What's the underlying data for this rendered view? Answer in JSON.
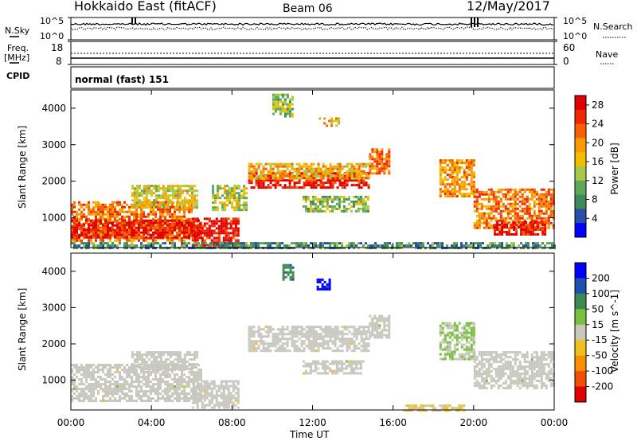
{
  "header": {
    "radar_name": "Hokkaido East (fitACF)",
    "beam": "Beam 06",
    "date": "12/May/2017"
  },
  "left_labels": {
    "nsky": "N.Sky",
    "freq": "Freq.",
    "freq_unit": "[MHz]",
    "cpid": "CPID",
    "noise_top": "10^5",
    "noise_bottom": "10^0",
    "freq_top": "18",
    "freq_bottom": "8"
  },
  "right_labels": {
    "nsearch": "N.Search",
    "nave": "Nave",
    "noise_top": "10^5",
    "noise_bottom": "10^0",
    "nave_top": "60",
    "nave_bottom": "0"
  },
  "cpid_text": "normal (fast) 151",
  "colors": {
    "power_scale": [
      "#0000ff",
      "#2a4fa8",
      "#3d8a5a",
      "#5fa85a",
      "#a8c84a",
      "#f0c000",
      "#f89a00",
      "#f86000",
      "#f02800",
      "#e00000"
    ],
    "velocity_scale": [
      "#0000ff",
      "#2050b0",
      "#3c8a50",
      "#78c040",
      "#c8c8b8",
      "#f0c020",
      "#f89000",
      "#f05000",
      "#e00000"
    ],
    "velocity_ground": "#c8c8c0"
  },
  "chart_data": [
    {
      "type": "heatmap",
      "name": "power",
      "xlabel": "",
      "ylabel": "Slant Range [km]",
      "x_ticks": [
        "00:00",
        "04:00",
        "08:00",
        "12:00",
        "16:00",
        "20:00",
        "00:00"
      ],
      "xlim": [
        0,
        24
      ],
      "ylim": [
        180,
        4500
      ],
      "y_ticks": [
        1000,
        2000,
        3000,
        4000
      ],
      "colorbar": {
        "label": "Power [dB]",
        "ticks": [
          4,
          8,
          12,
          16,
          20,
          24,
          28
        ],
        "range": [
          0,
          30
        ]
      },
      "regions": [
        {
          "t0": 0.0,
          "t1": 6.0,
          "r0": 400,
          "r1": 1450,
          "v": 22
        },
        {
          "t0": 0.0,
          "t1": 6.5,
          "r0": 450,
          "r1": 950,
          "v": 27
        },
        {
          "t0": 3.0,
          "t1": 6.3,
          "r0": 1300,
          "r1": 1900,
          "v": 16
        },
        {
          "t0": 6.0,
          "t1": 8.3,
          "r0": 200,
          "r1": 1000,
          "v": 28
        },
        {
          "t0": 7.0,
          "t1": 8.7,
          "r0": 1200,
          "r1": 1900,
          "v": 14
        },
        {
          "t0": 8.8,
          "t1": 14.8,
          "r0": 1800,
          "r1": 2250,
          "v": 28
        },
        {
          "t0": 8.8,
          "t1": 14.8,
          "r0": 2100,
          "r1": 2500,
          "v": 18
        },
        {
          "t0": 11.5,
          "t1": 14.8,
          "r0": 1150,
          "r1": 1600,
          "v": 12
        },
        {
          "t0": 14.8,
          "t1": 15.8,
          "r0": 2200,
          "r1": 2900,
          "v": 22
        },
        {
          "t0": 10.0,
          "t1": 11.0,
          "r0": 3800,
          "r1": 4400,
          "v": 12
        },
        {
          "t0": 12.3,
          "t1": 13.3,
          "r0": 3500,
          "r1": 3750,
          "v": 18
        },
        {
          "t0": 18.3,
          "t1": 20.0,
          "r0": 1600,
          "r1": 2600,
          "v": 20
        },
        {
          "t0": 20.0,
          "t1": 24.0,
          "r0": 700,
          "r1": 1800,
          "v": 22
        },
        {
          "t0": 21.0,
          "t1": 23.5,
          "r0": 550,
          "r1": 900,
          "v": 27
        },
        {
          "t0": 0.0,
          "t1": 24.0,
          "r0": 180,
          "r1": 330,
          "v": 8
        }
      ]
    },
    {
      "type": "heatmap",
      "name": "velocity",
      "xlabel": "Time UT",
      "ylabel": "Slant Range [km]",
      "x_ticks": [
        "00:00",
        "04:00",
        "08:00",
        "12:00",
        "16:00",
        "20:00",
        "00:00"
      ],
      "xlim": [
        0,
        24
      ],
      "ylim": [
        180,
        4500
      ],
      "y_ticks": [
        1000,
        2000,
        3000,
        4000
      ],
      "colorbar": {
        "label": "Velocity [m s^-1]",
        "ticks": [
          200,
          100,
          50,
          15,
          -15,
          -50,
          -100,
          -200
        ],
        "range": [
          -250,
          250
        ]
      },
      "regions": [
        {
          "t0": 0.0,
          "t1": 6.5,
          "r0": 400,
          "r1": 1450,
          "v": 0
        },
        {
          "t0": 3.0,
          "t1": 6.3,
          "r0": 1300,
          "r1": 1800,
          "v": 0
        },
        {
          "t0": 6.0,
          "t1": 8.3,
          "r0": 250,
          "r1": 1000,
          "v": 0
        },
        {
          "t0": 8.8,
          "t1": 14.8,
          "r0": 1800,
          "r1": 2500,
          "v": 0
        },
        {
          "t0": 11.5,
          "t1": 14.5,
          "r0": 1200,
          "r1": 1550,
          "v": 0
        },
        {
          "t0": 14.8,
          "t1": 15.8,
          "r0": 2200,
          "r1": 2800,
          "v": 0
        },
        {
          "t0": 12.2,
          "t1": 12.9,
          "r0": 3500,
          "r1": 3800,
          "v": 220
        },
        {
          "t0": 10.5,
          "t1": 11.0,
          "r0": 3800,
          "r1": 4200,
          "v": 120
        },
        {
          "t0": 18.3,
          "t1": 20.0,
          "r0": 1600,
          "r1": 2600,
          "v": 30
        },
        {
          "t0": 20.0,
          "t1": 24.0,
          "r0": 800,
          "r1": 1800,
          "v": 0
        },
        {
          "t0": 16.5,
          "t1": 19.5,
          "r0": 180,
          "r1": 330,
          "v": -30
        }
      ]
    }
  ]
}
